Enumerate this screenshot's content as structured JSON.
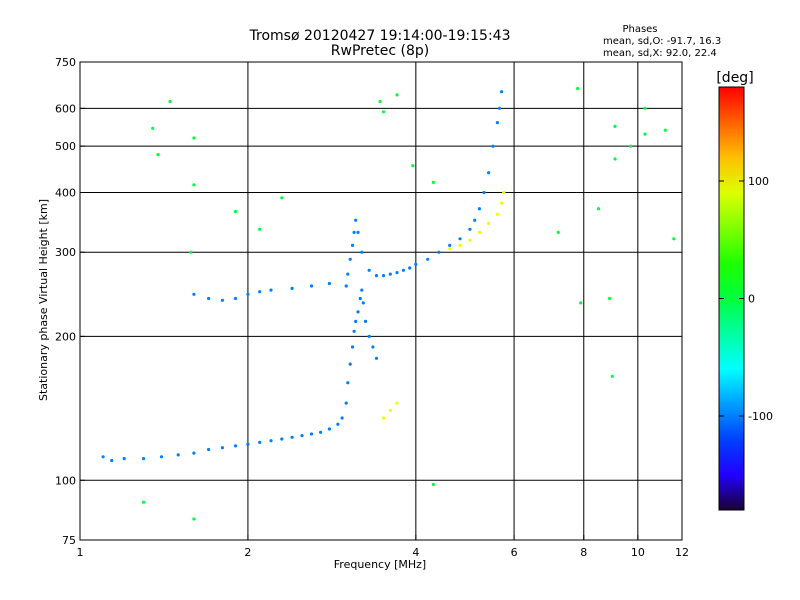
{
  "chart_data": {
    "type": "scatter",
    "title": "Tromsø 20120427 19:14:00-19:15:43",
    "subtitle": "RwPretec (8p)",
    "xlabel": "Frequency [MHz]",
    "ylabel": "Stationary phase Virtual Height [km]",
    "x_scale": "log",
    "y_scale": "log",
    "xlim": [
      1,
      12
    ],
    "ylim": [
      75,
      750
    ],
    "x_ticks": [
      1,
      2,
      4,
      6,
      8,
      10,
      12
    ],
    "y_ticks": [
      75,
      100,
      200,
      300,
      400,
      500,
      600,
      750
    ],
    "x_grid": [
      2,
      4,
      6,
      8,
      10
    ],
    "y_grid": [
      100,
      200,
      300,
      400,
      500,
      600
    ],
    "grid": true,
    "phases": {
      "title": "Phases",
      "line_o": "mean, sd,O: -91.7, 16.3",
      "line_x": "mean, sd,X:  92.0, 22.4"
    },
    "colorbar": {
      "label": "[deg]",
      "range": [
        -180,
        180
      ],
      "ticks": [
        100,
        0,
        -100
      ],
      "colormap": "rainbow"
    },
    "colors": {
      "low_phase": "#0030ff",
      "mid_phase": "#00c0ff",
      "high_phase": "#ffd200",
      "grid": "#000000"
    },
    "series": [
      {
        "kind": "o-trace-F1",
        "phase": -100,
        "points": [
          [
            1.1,
            112
          ],
          [
            1.14,
            110
          ],
          [
            1.2,
            111
          ],
          [
            1.3,
            111
          ],
          [
            1.4,
            112
          ],
          [
            1.5,
            113
          ],
          [
            1.6,
            114
          ],
          [
            1.7,
            116
          ],
          [
            1.8,
            117
          ],
          [
            1.9,
            118
          ],
          [
            2.0,
            119
          ],
          [
            2.1,
            120
          ],
          [
            2.2,
            121
          ],
          [
            2.3,
            122
          ],
          [
            2.4,
            123
          ],
          [
            2.5,
            124
          ],
          [
            2.6,
            125
          ],
          [
            2.7,
            126
          ],
          [
            2.8,
            128
          ],
          [
            2.9,
            131
          ],
          [
            2.95,
            135
          ],
          [
            3.0,
            145
          ],
          [
            3.02,
            160
          ],
          [
            3.05,
            175
          ],
          [
            3.08,
            190
          ],
          [
            3.1,
            205
          ],
          [
            3.12,
            215
          ],
          [
            3.15,
            225
          ],
          [
            3.18,
            240
          ],
          [
            3.2,
            250
          ],
          [
            3.22,
            235
          ],
          [
            3.25,
            215
          ],
          [
            3.3,
            200
          ],
          [
            3.35,
            190
          ],
          [
            3.4,
            180
          ]
        ]
      },
      {
        "kind": "o-trace-F2",
        "phase": -100,
        "points": [
          [
            3.0,
            255
          ],
          [
            3.02,
            270
          ],
          [
            3.05,
            290
          ],
          [
            3.08,
            310
          ],
          [
            3.1,
            330
          ],
          [
            3.12,
            350
          ],
          [
            3.15,
            330
          ],
          [
            3.2,
            300
          ],
          [
            3.3,
            275
          ],
          [
            3.4,
            268
          ],
          [
            3.5,
            268
          ],
          [
            3.6,
            270
          ],
          [
            3.7,
            272
          ],
          [
            3.8,
            275
          ],
          [
            3.9,
            278
          ],
          [
            4.0,
            283
          ],
          [
            4.2,
            290
          ],
          [
            4.4,
            300
          ],
          [
            4.6,
            310
          ],
          [
            4.8,
            320
          ],
          [
            5.0,
            335
          ],
          [
            5.1,
            350
          ],
          [
            5.2,
            370
          ],
          [
            5.3,
            400
          ],
          [
            5.4,
            440
          ],
          [
            5.5,
            500
          ],
          [
            5.6,
            560
          ],
          [
            5.65,
            600
          ],
          [
            5.7,
            650
          ]
        ]
      },
      {
        "kind": "early-F-trace",
        "phase": -100,
        "points": [
          [
            1.6,
            245
          ],
          [
            1.7,
            240
          ],
          [
            1.8,
            238
          ],
          [
            1.9,
            240
          ],
          [
            2.0,
            245
          ],
          [
            2.1,
            248
          ],
          [
            2.2,
            250
          ],
          [
            2.4,
            252
          ],
          [
            2.6,
            255
          ],
          [
            2.8,
            258
          ]
        ]
      },
      {
        "kind": "x-trace",
        "phase": 95,
        "points": [
          [
            4.6,
            305
          ],
          [
            4.8,
            310
          ],
          [
            5.0,
            318
          ],
          [
            5.2,
            330
          ],
          [
            5.4,
            345
          ],
          [
            5.6,
            360
          ],
          [
            5.7,
            380
          ],
          [
            5.75,
            400
          ],
          [
            3.5,
            135
          ],
          [
            3.6,
            140
          ],
          [
            3.7,
            145
          ]
        ]
      },
      {
        "kind": "scattered",
        "phase": 0,
        "points": [
          [
            1.35,
            545
          ],
          [
            1.38,
            480
          ],
          [
            1.45,
            620
          ],
          [
            1.6,
            520
          ],
          [
            1.6,
            415
          ],
          [
            1.58,
            300
          ],
          [
            1.9,
            365
          ],
          [
            2.1,
            335
          ],
          [
            2.3,
            390
          ],
          [
            3.45,
            620
          ],
          [
            3.5,
            590
          ],
          [
            3.7,
            640
          ],
          [
            3.95,
            455
          ],
          [
            4.3,
            420
          ],
          [
            7.8,
            660
          ],
          [
            8.5,
            370
          ],
          [
            9.1,
            550
          ],
          [
            9.1,
            470
          ],
          [
            9.7,
            500
          ],
          [
            10.3,
            600
          ],
          [
            10.3,
            530
          ],
          [
            11.2,
            540
          ],
          [
            11.6,
            320
          ],
          [
            7.2,
            330
          ],
          [
            8.9,
            240
          ],
          [
            9.0,
            165
          ],
          [
            7.9,
            235
          ],
          [
            1.3,
            90
          ],
          [
            1.6,
            83
          ],
          [
            4.3,
            98
          ]
        ]
      }
    ]
  }
}
